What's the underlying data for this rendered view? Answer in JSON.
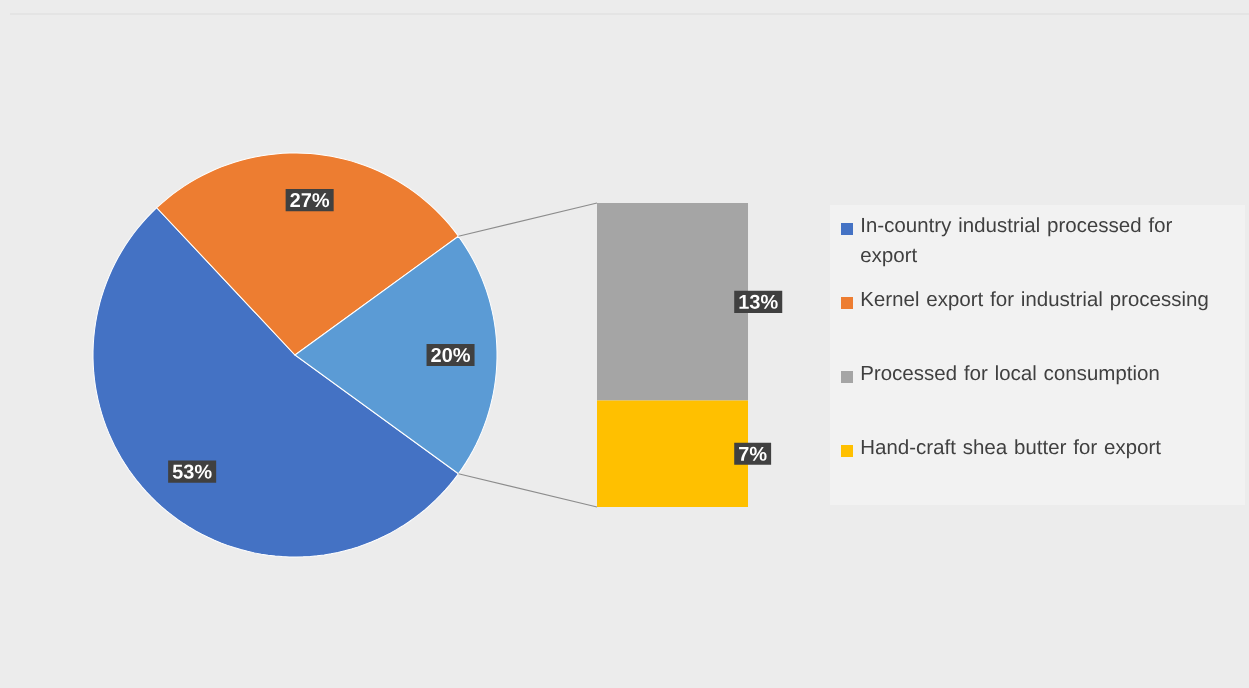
{
  "chart_data": [
    {
      "type": "pie",
      "categories": [
        "In-country industrial processed for export",
        "Kernel export for industrial processing",
        null
      ],
      "values": [
        53,
        27,
        20
      ],
      "colors": [
        "#4472c4",
        "#ed7d31",
        "#5b9bd5"
      ],
      "value_labels": [
        "53%",
        "27%",
        "20%"
      ],
      "legend": "right"
    },
    {
      "type": "bar",
      "stacked": true,
      "categories": [
        null
      ],
      "series": [
        {
          "name": "Hand-craft shea butter for export",
          "color": "#ffc000",
          "values": [
            7
          ],
          "value_labels": [
            "7%"
          ]
        },
        {
          "name": "Processed for local consumption",
          "color": "#a5a5a5",
          "values": [
            13
          ],
          "value_labels": [
            "13%"
          ]
        }
      ],
      "legend": "right"
    }
  ]
}
